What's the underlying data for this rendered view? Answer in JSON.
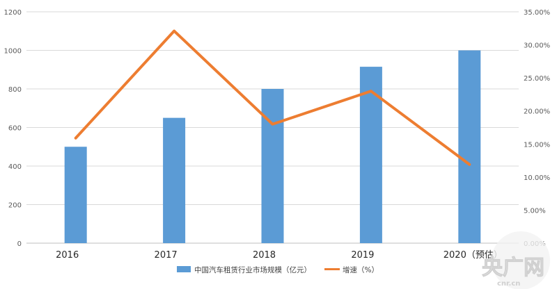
{
  "chart_data": {
    "type": "bar",
    "categories": [
      "2016",
      "2017",
      "2018",
      "2019",
      "2020（预估）"
    ],
    "series": [
      {
        "name": "中国汽车租赁行业市场规模（亿元）",
        "type": "bar",
        "axis": "left",
        "values": [
          500,
          650,
          800,
          915,
          1000
        ],
        "color": "#5B9BD5"
      },
      {
        "name": "增速（%）",
        "type": "line",
        "axis": "right",
        "values": [
          15.9,
          32.1,
          18.0,
          23.0,
          11.9
        ],
        "color": "#ED7D31"
      }
    ],
    "y_left": {
      "ticks": [
        "0",
        "200",
        "400",
        "600",
        "800",
        "1000",
        "1200"
      ],
      "lim": [
        0,
        1200
      ]
    },
    "y_right": {
      "ticks": [
        "0.00%",
        "5.00%",
        "10.00%",
        "15.00%",
        "20.00%",
        "25.00%",
        "30.00%",
        "35.00%"
      ],
      "lim": [
        0,
        35
      ]
    },
    "grid": true,
    "legend_position": "bottom"
  },
  "watermark": {
    "main": "央广网",
    "sub": "cnr.cn"
  }
}
